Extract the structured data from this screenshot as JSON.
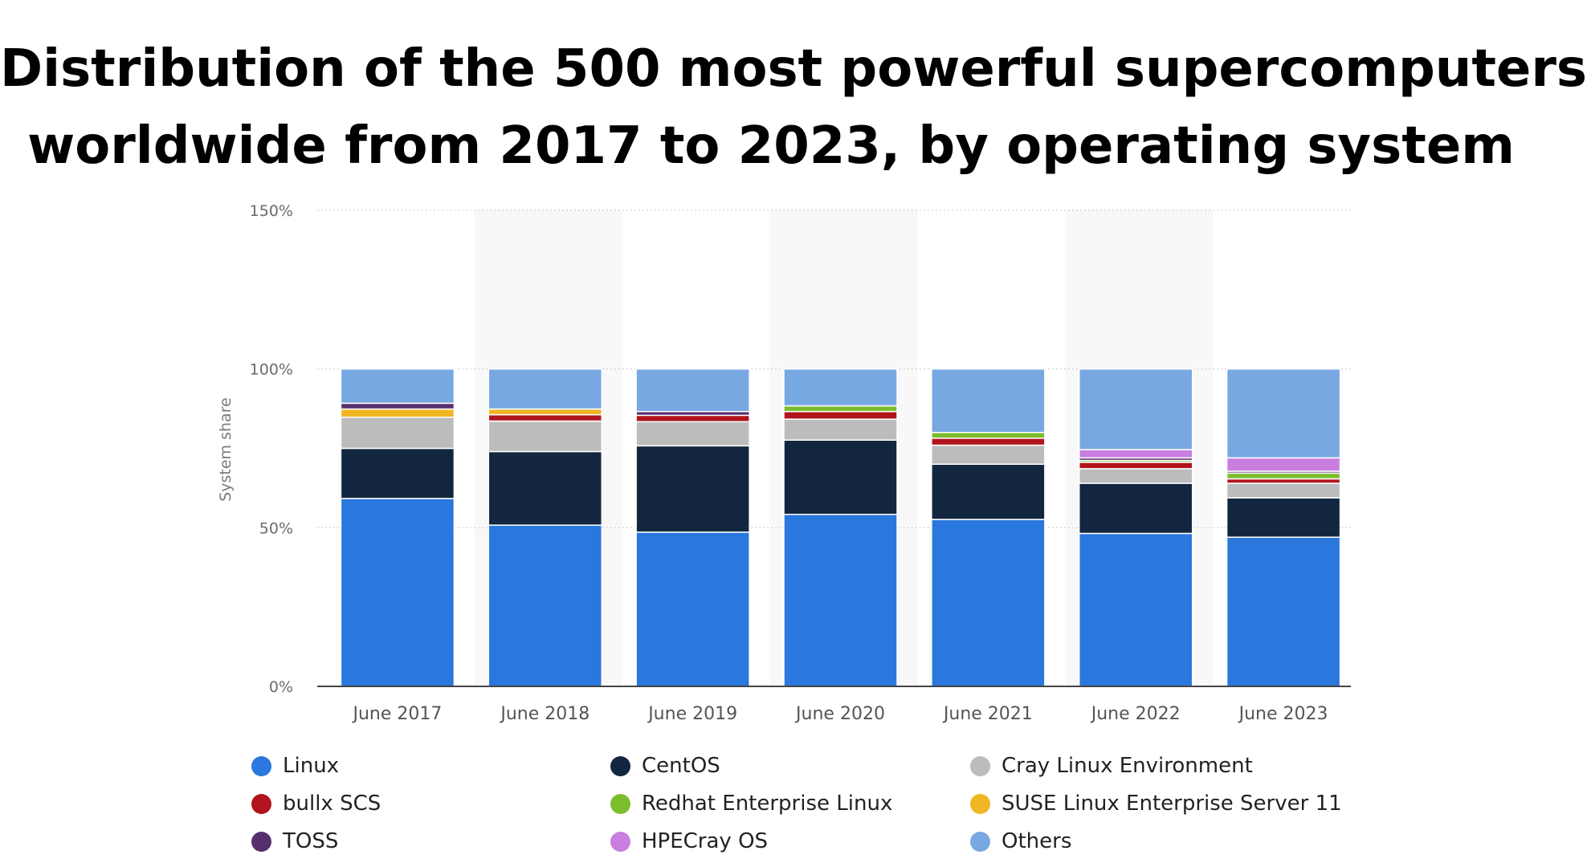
{
  "title_lines": [
    "Distribution of the 500 most powerful supercomputers",
    "worldwide from 2017 to 2023, by operating system"
  ],
  "chart_data": {
    "type": "bar",
    "stacked": true,
    "title": "Distribution of the 500 most powerful supercomputers worldwide from 2017 to 2023, by operating system",
    "xlabel": "",
    "ylabel": "System share",
    "ylim": [
      0,
      150
    ],
    "yticks": [
      0,
      50,
      100,
      150
    ],
    "ytick_labels": [
      "0%",
      "50%",
      "100%",
      "150%"
    ],
    "categories": [
      "June 2017",
      "June 2018",
      "June 2019",
      "June 2020",
      "June 2021",
      "June 2022",
      "June 2023"
    ],
    "legend_position": "bottom",
    "series": [
      {
        "name": "Linux",
        "color": "#2a77dd",
        "values": [
          59.2,
          50.8,
          48.6,
          54.2,
          52.6,
          48.2,
          47.0
        ]
      },
      {
        "name": "CentOS",
        "color": "#13263f",
        "values": [
          15.8,
          23.2,
          27.2,
          23.4,
          17.4,
          15.8,
          12.4
        ]
      },
      {
        "name": "Cray Linux Environment",
        "color": "#bcbcbc",
        "values": [
          9.8,
          9.6,
          7.6,
          6.6,
          6.0,
          4.6,
          4.6
        ]
      },
      {
        "name": "bullx SCS",
        "color": "#b0141c",
        "values": [
          0.0,
          2.0,
          2.0,
          2.4,
          2.2,
          2.0,
          1.4
        ]
      },
      {
        "name": "Redhat Enterprise Linux",
        "color": "#7cbd2e",
        "values": [
          0.0,
          0.0,
          0.0,
          1.8,
          1.8,
          0.6,
          1.8
        ]
      },
      {
        "name": "SUSE Linux Enterprise Server 11",
        "color": "#f0b623",
        "values": [
          2.6,
          1.8,
          0.0,
          0.0,
          0.0,
          0.0,
          0.0
        ]
      },
      {
        "name": "TOSS",
        "color": "#56306e",
        "values": [
          1.8,
          0.0,
          1.2,
          0.0,
          0.0,
          0.8,
          0.6
        ]
      },
      {
        "name": "HPECray OS",
        "color": "#c97ee0",
        "values": [
          0.0,
          0.0,
          0.0,
          0.0,
          0.0,
          2.6,
          4.2
        ]
      },
      {
        "name": "Others",
        "color": "#78a8e2",
        "values": [
          10.8,
          12.6,
          13.4,
          11.6,
          20.0,
          25.4,
          28.0
        ]
      }
    ]
  }
}
